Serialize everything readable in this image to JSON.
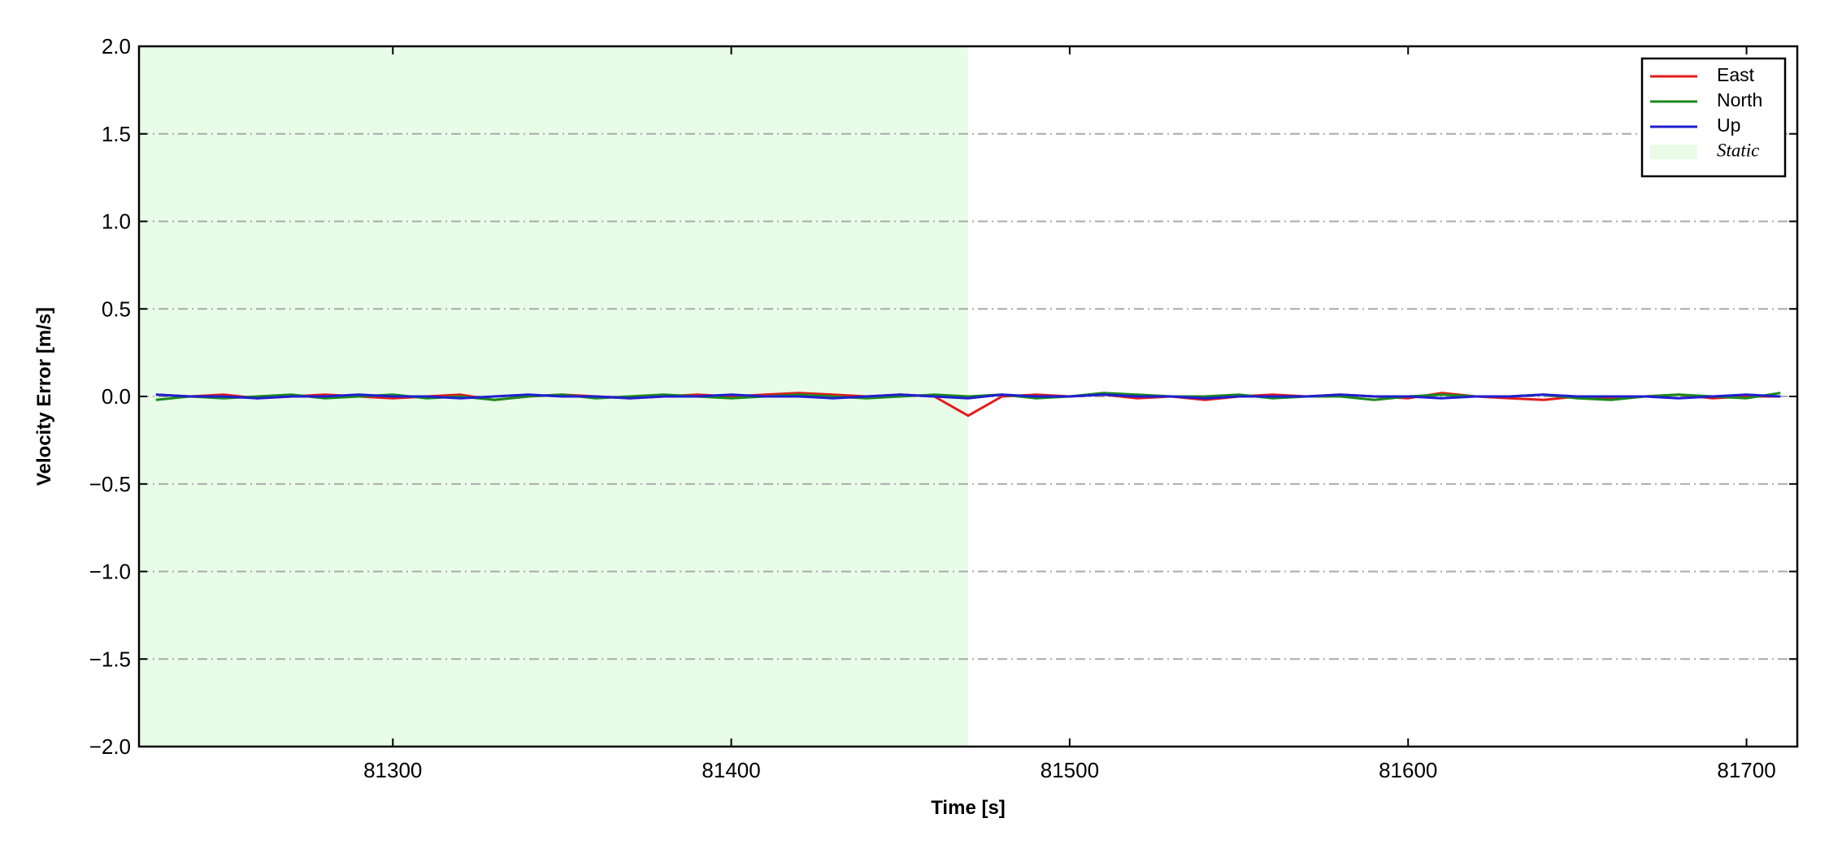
{
  "chart_data": {
    "type": "line",
    "xlabel": "Time [s]",
    "ylabel": "Velocity Error [m/s]",
    "x": [
      81230,
      81240,
      81250,
      81260,
      81270,
      81280,
      81290,
      81300,
      81310,
      81320,
      81330,
      81340,
      81350,
      81360,
      81370,
      81380,
      81390,
      81400,
      81410,
      81420,
      81430,
      81440,
      81450,
      81460,
      81470,
      81480,
      81490,
      81500,
      81510,
      81520,
      81530,
      81540,
      81550,
      81560,
      81570,
      81580,
      81590,
      81600,
      81610,
      81620,
      81630,
      81640,
      81650,
      81660,
      81670,
      81680,
      81690,
      81700,
      81710
    ],
    "series": [
      {
        "name": "East",
        "color": "#e31a1c",
        "values": [
          0.01,
          0.0,
          0.01,
          -0.01,
          0.0,
          0.01,
          0.0,
          -0.01,
          0.0,
          0.01,
          -0.02,
          0.0,
          0.01,
          0.0,
          -0.01,
          0.0,
          0.01,
          0.0,
          0.01,
          0.02,
          0.01,
          0.0,
          0.01,
          0.0,
          -0.11,
          0.0,
          0.01,
          0.0,
          0.01,
          -0.01,
          0.0,
          -0.02,
          0.0,
          0.01,
          0.0,
          0.01,
          0.0,
          -0.01,
          0.02,
          0.0,
          -0.01,
          -0.02,
          0.0,
          -0.01,
          0.0,
          0.01,
          -0.01,
          0.0,
          0.0
        ]
      },
      {
        "name": "North",
        "color": "#1a8a1a",
        "values": [
          -0.02,
          0.0,
          -0.01,
          0.0,
          0.01,
          -0.01,
          0.0,
          0.01,
          -0.01,
          0.0,
          -0.02,
          0.0,
          0.01,
          -0.01,
          0.0,
          0.01,
          0.0,
          -0.01,
          0.0,
          0.01,
          0.0,
          -0.01,
          0.0,
          0.01,
          0.0,
          0.01,
          -0.01,
          0.0,
          0.02,
          0.01,
          0.0,
          0.0,
          0.01,
          -0.01,
          0.0,
          0.0,
          -0.02,
          0.0,
          0.01,
          0.0,
          0.0,
          0.01,
          -0.01,
          -0.02,
          0.0,
          0.01,
          0.0,
          -0.01,
          0.02
        ]
      },
      {
        "name": "Up",
        "color": "#1f1fcf",
        "values": [
          0.01,
          0.0,
          0.0,
          -0.01,
          0.0,
          0.0,
          0.01,
          0.0,
          0.0,
          -0.01,
          0.0,
          0.01,
          0.0,
          0.0,
          -0.01,
          0.0,
          0.0,
          0.01,
          0.0,
          0.0,
          -0.01,
          0.0,
          0.01,
          0.0,
          -0.01,
          0.01,
          0.0,
          0.0,
          0.01,
          0.0,
          0.0,
          -0.01,
          0.0,
          0.0,
          0.0,
          0.01,
          0.0,
          0.0,
          -0.01,
          0.0,
          0.0,
          0.01,
          0.0,
          0.0,
          0.0,
          -0.01,
          0.0,
          0.01,
          0.0
        ]
      }
    ],
    "static_region": {
      "name": "Static",
      "start": 81225,
      "end": 81470,
      "color": "#e8fce8"
    },
    "xlim": [
      81225,
      81715
    ],
    "xticks": [
      81300,
      81400,
      81500,
      81600,
      81700
    ],
    "ylim": [
      -2,
      2
    ],
    "yticks": [
      {
        "value": -2,
        "label": "−2.0"
      },
      {
        "value": -1.5,
        "label": "−1.5"
      },
      {
        "value": -1,
        "label": "−1.0"
      },
      {
        "value": -0.5,
        "label": "−0.5"
      },
      {
        "value": 0,
        "label": "0.0"
      },
      {
        "value": 0.5,
        "label": "0.5"
      },
      {
        "value": 1,
        "label": "1.0"
      },
      {
        "value": 1.5,
        "label": "1.5"
      },
      {
        "value": 2,
        "label": "2.0"
      }
    ],
    "grid": true,
    "legend": "upper right"
  }
}
